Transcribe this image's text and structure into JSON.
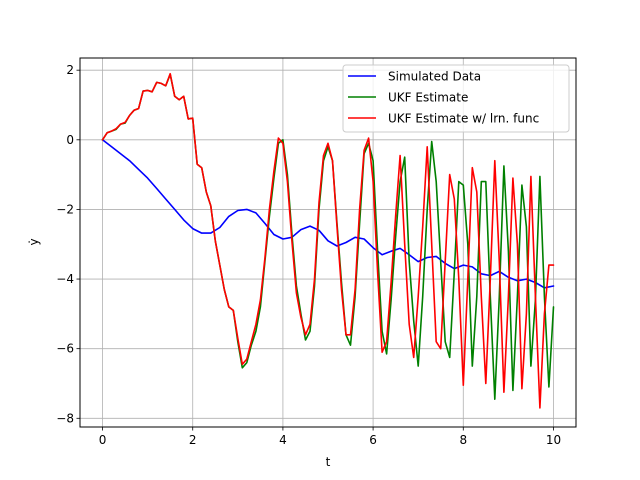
{
  "chart_data": {
    "type": "line",
    "xlabel": "t",
    "ylabel": "ẏ",
    "xlim": [
      -0.5,
      10.5
    ],
    "ylim": [
      -8.25,
      2.35
    ],
    "xticks": [
      0,
      2,
      4,
      6,
      8,
      10
    ],
    "yticks": [
      2,
      0,
      -2,
      -4,
      -6,
      -8
    ],
    "grid": true,
    "legend_position": "top-right",
    "series": [
      {
        "name": "Simulated Data",
        "color": "#0000ff",
        "x": [
          0,
          0.2,
          0.4,
          0.6,
          0.8,
          1.0,
          1.2,
          1.4,
          1.6,
          1.8,
          2.0,
          2.2,
          2.4,
          2.6,
          2.8,
          3.0,
          3.2,
          3.4,
          3.6,
          3.8,
          4.0,
          4.2,
          4.4,
          4.6,
          4.8,
          5.0,
          5.2,
          5.4,
          5.6,
          5.8,
          6.0,
          6.2,
          6.4,
          6.6,
          6.8,
          7.0,
          7.2,
          7.4,
          7.6,
          7.8,
          8.0,
          8.2,
          8.4,
          8.6,
          8.8,
          9.0,
          9.2,
          9.4,
          9.6,
          9.8,
          10.0
        ],
        "values": [
          0,
          -0.2,
          -0.4,
          -0.6,
          -0.85,
          -1.1,
          -1.4,
          -1.7,
          -2.0,
          -2.3,
          -2.55,
          -2.68,
          -2.68,
          -2.52,
          -2.2,
          -2.03,
          -2.0,
          -2.1,
          -2.4,
          -2.72,
          -2.85,
          -2.8,
          -2.58,
          -2.48,
          -2.6,
          -2.9,
          -3.05,
          -2.95,
          -2.8,
          -2.85,
          -3.1,
          -3.3,
          -3.2,
          -3.12,
          -3.3,
          -3.5,
          -3.38,
          -3.35,
          -3.55,
          -3.7,
          -3.6,
          -3.65,
          -3.85,
          -3.9,
          -3.78,
          -3.95,
          -4.05,
          -4.0,
          -4.1,
          -4.25,
          -4.2
        ]
      },
      {
        "name": "UKF Estimate",
        "color": "#008000",
        "x": [
          0,
          0.1,
          0.2,
          0.3,
          0.4,
          0.5,
          0.6,
          0.7,
          0.8,
          0.9,
          1.0,
          1.1,
          1.2,
          1.3,
          1.4,
          1.5,
          1.6,
          1.7,
          1.8,
          1.9,
          2.0,
          2.1,
          2.2,
          2.3,
          2.4,
          2.5,
          2.6,
          2.7,
          2.8,
          2.9,
          3.0,
          3.1,
          3.2,
          3.3,
          3.4,
          3.5,
          3.6,
          3.7,
          3.8,
          3.9,
          4.0,
          4.1,
          4.2,
          4.3,
          4.4,
          4.5,
          4.6,
          4.7,
          4.8,
          4.9,
          5.0,
          5.1,
          5.2,
          5.3,
          5.4,
          5.5,
          5.6,
          5.7,
          5.8,
          5.9,
          6.0,
          6.1,
          6.2,
          6.3,
          6.4,
          6.5,
          6.6,
          6.7,
          6.8,
          6.9,
          7.0,
          7.1,
          7.2,
          7.3,
          7.4,
          7.5,
          7.6,
          7.7,
          7.8,
          7.9,
          8.0,
          8.1,
          8.2,
          8.3,
          8.4,
          8.5,
          8.6,
          8.7,
          8.8,
          8.9,
          9.0,
          9.1,
          9.2,
          9.3,
          9.4,
          9.5,
          9.6,
          9.7,
          9.8,
          9.9,
          10.0
        ],
        "values": [
          0,
          0.2,
          0.25,
          0.3,
          0.45,
          0.48,
          0.7,
          0.85,
          0.9,
          1.4,
          1.42,
          1.38,
          1.65,
          1.62,
          1.55,
          1.88,
          1.25,
          1.15,
          1.25,
          0.6,
          0.62,
          -0.7,
          -0.8,
          -1.5,
          -1.9,
          -2.9,
          -3.6,
          -4.3,
          -4.8,
          -4.9,
          -5.8,
          -6.55,
          -6.4,
          -5.9,
          -5.5,
          -4.8,
          -3.5,
          -2.2,
          -1.1,
          -0.1,
          0,
          -1.0,
          -2.7,
          -4.2,
          -5.0,
          -5.75,
          -5.5,
          -4.2,
          -2.0,
          -0.6,
          -0.2,
          -0.6,
          -2.4,
          -4.1,
          -5.6,
          -5.9,
          -4.5,
          -2.4,
          -0.4,
          -0.1,
          -0.6,
          -3.2,
          -5.5,
          -6.15,
          -4.6,
          -2.8,
          -1.2,
          -0.5,
          -3.5,
          -5.2,
          -6.5,
          -4.5,
          -2.0,
          -0.05,
          -1.2,
          -3.5,
          -5.8,
          -6.25,
          -3.8,
          -1.2,
          -1.3,
          -3.0,
          -6.5,
          -4.5,
          -1.2,
          -1.2,
          -4.5,
          -7.45,
          -4.5,
          -0.75,
          -3.2,
          -7.2,
          -4.5,
          -1.3,
          -2.5,
          -6.5,
          -4.6,
          -1.05,
          -4.5,
          -7.1,
          -4.8
        ]
      },
      {
        "name": "UKF Estimate w/ lrn. func",
        "color": "#ff0000",
        "x": [
          0,
          0.1,
          0.2,
          0.3,
          0.4,
          0.5,
          0.6,
          0.7,
          0.8,
          0.9,
          1.0,
          1.1,
          1.2,
          1.3,
          1.4,
          1.5,
          1.6,
          1.7,
          1.8,
          1.9,
          2.0,
          2.1,
          2.2,
          2.3,
          2.4,
          2.5,
          2.6,
          2.7,
          2.8,
          2.9,
          3.0,
          3.1,
          3.2,
          3.3,
          3.4,
          3.5,
          3.6,
          3.7,
          3.8,
          3.9,
          4.0,
          4.1,
          4.2,
          4.3,
          4.4,
          4.5,
          4.6,
          4.7,
          4.8,
          4.9,
          5.0,
          5.1,
          5.2,
          5.3,
          5.4,
          5.5,
          5.6,
          5.7,
          5.8,
          5.9,
          6.0,
          6.1,
          6.2,
          6.3,
          6.4,
          6.5,
          6.6,
          6.7,
          6.8,
          6.9,
          7.0,
          7.1,
          7.2,
          7.3,
          7.4,
          7.5,
          7.6,
          7.7,
          7.8,
          7.9,
          8.0,
          8.1,
          8.2,
          8.3,
          8.4,
          8.5,
          8.6,
          8.7,
          8.8,
          8.9,
          9.0,
          9.1,
          9.2,
          9.3,
          9.4,
          9.5,
          9.6,
          9.7,
          9.8,
          9.9,
          10.0
        ],
        "values": [
          0,
          0.2,
          0.25,
          0.32,
          0.45,
          0.5,
          0.7,
          0.85,
          0.9,
          1.4,
          1.42,
          1.38,
          1.65,
          1.62,
          1.55,
          1.9,
          1.25,
          1.15,
          1.25,
          0.6,
          0.62,
          -0.7,
          -0.8,
          -1.5,
          -1.9,
          -2.9,
          -3.6,
          -4.3,
          -4.8,
          -4.9,
          -5.7,
          -6.45,
          -6.3,
          -5.8,
          -5.3,
          -4.6,
          -3.4,
          -2.0,
          -0.9,
          0.05,
          -0.1,
          -1.2,
          -2.9,
          -4.4,
          -5.1,
          -5.6,
          -5.3,
          -4.0,
          -1.8,
          -0.45,
          -0.1,
          -0.6,
          -2.5,
          -4.3,
          -5.6,
          -5.6,
          -4.3,
          -2.0,
          -0.3,
          0.05,
          -1.2,
          -3.8,
          -6.1,
          -5.8,
          -4.1,
          -2.2,
          -0.45,
          -3.0,
          -5.3,
          -6.25,
          -4.5,
          -2.5,
          -0.2,
          -3.0,
          -5.8,
          -6.0,
          -3.5,
          -1.0,
          -1.7,
          -4.0,
          -7.05,
          -4.0,
          -0.8,
          -1.5,
          -4.5,
          -7.0,
          -4.0,
          -0.6,
          -3.5,
          -7.25,
          -4.5,
          -1.1,
          -3.0,
          -7.15,
          -5.0,
          -1.05,
          -4.5,
          -7.7,
          -5.0,
          -3.6,
          -3.6
        ]
      }
    ]
  }
}
